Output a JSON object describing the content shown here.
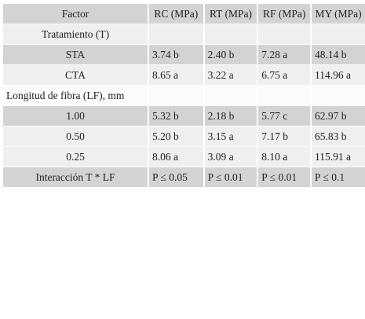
{
  "table": {
    "header": [
      "Factor",
      "RC (MPa)",
      "RT (MPa)",
      "RF (MPa)",
      "MY (MPa)"
    ],
    "rows": [
      [
        "Tratamiento (T)"
      ],
      [
        "STA",
        "3.74 b",
        "2.40 b",
        "7.28 a",
        "48.14 b"
      ],
      [
        "CTA",
        "8.65 a",
        "3.22 a",
        "6.75 a",
        "114.96 a"
      ],
      [
        "Longitud de fibra (LF), mm"
      ],
      [
        "1.00",
        "5.32 b",
        "2.18 b",
        "5.77 c",
        "62.97 b"
      ],
      [
        "0.50",
        "5.20 b",
        "3.15 a",
        "7.17 b",
        "65.83 b"
      ],
      [
        "0.25",
        "8.06 a",
        "3.09 a",
        "8.10 a",
        "115.91 a"
      ],
      [
        "Interacción T * LF",
        "P ≤ 0.05",
        "P ≤ 0.01",
        "P ≤ 0.01",
        "P ≤ 0.1"
      ]
    ]
  }
}
